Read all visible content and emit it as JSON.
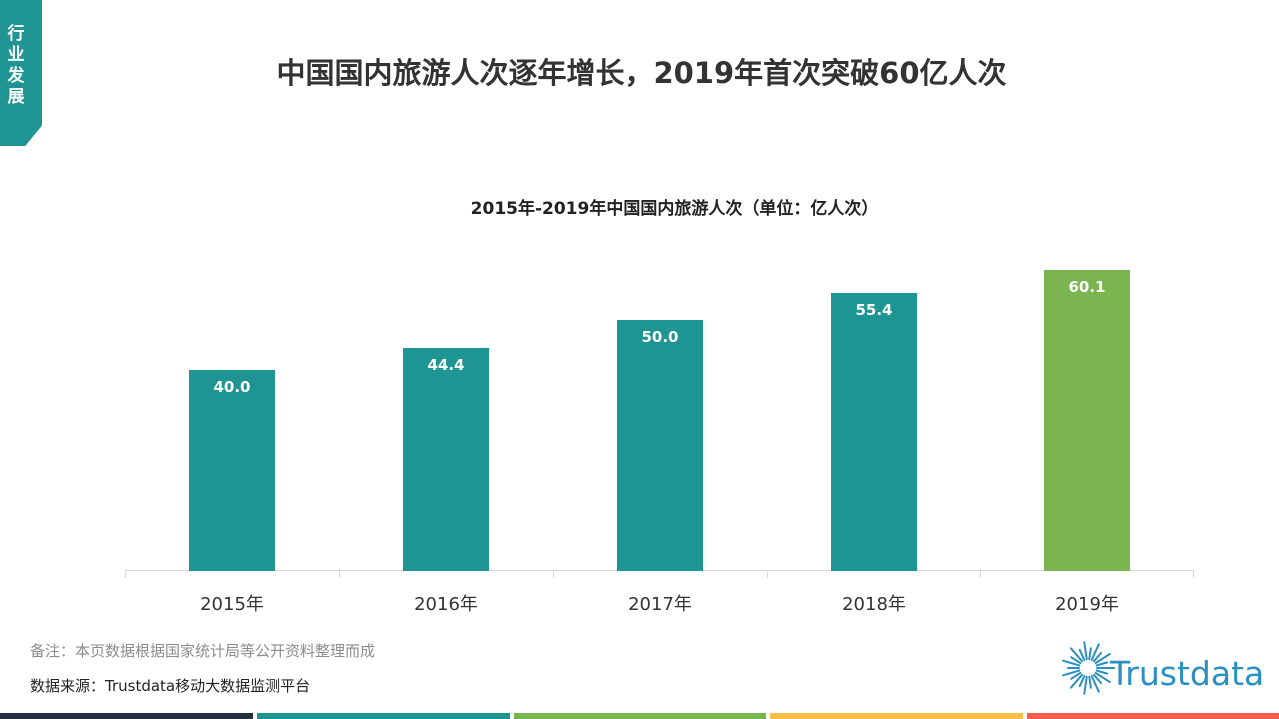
{
  "section_tab": {
    "label": "行业发展",
    "color": "#1e9592"
  },
  "page_title": "中国国内旅游人次逐年增长，2019年首次突破60亿人次",
  "chart_title": "2015年-2019年中国国内旅游人次（单位：亿人次）",
  "note": "备注：本页数据根据国家统计局等公开资料整理而成",
  "source": "数据来源：Trustdata移动大数据监测平台",
  "logo": {
    "text": "Trustdata",
    "icon": "sunburst-icon",
    "color": "#2a8fc1"
  },
  "colors": {
    "bar_default": "#1e9592",
    "bar_highlight": "#7ab550",
    "footer": [
      "#22313f",
      "#1e9592",
      "#7ab550",
      "#f8bf4b",
      "#f75c4c"
    ]
  },
  "bars": [
    {
      "label": "2015年",
      "value": "40.0"
    },
    {
      "label": "2016年",
      "value": "44.4"
    },
    {
      "label": "2017年",
      "value": "50.0"
    },
    {
      "label": "2018年",
      "value": "55.4"
    },
    {
      "label": "2019年",
      "value": "60.1"
    }
  ],
  "chart_data": {
    "type": "bar",
    "title": "2015年-2019年中国国内旅游人次（单位：亿人次）",
    "categories": [
      "2015年",
      "2016年",
      "2017年",
      "2018年",
      "2019年"
    ],
    "values": [
      40.0,
      44.4,
      50.0,
      55.4,
      60.1
    ],
    "xlabel": "",
    "ylabel": "亿人次",
    "ylim": [
      0,
      62
    ],
    "grid": false,
    "legend": null,
    "data_labels": true,
    "highlight": {
      "category": "2019年",
      "color": "#7ab550"
    },
    "bar_color": "#1e9592"
  }
}
